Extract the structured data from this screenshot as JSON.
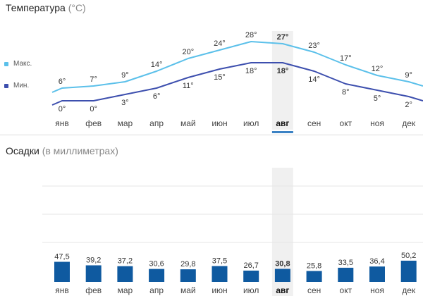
{
  "temperature": {
    "title": "Температура",
    "unit": "(°C)",
    "legend": {
      "max_label": "Макс.",
      "min_label": "Мин."
    },
    "colors": {
      "max": "#5bc0ea",
      "min": "#3d4fae",
      "highlight": "#f0f0f0",
      "selected_marker": "#3b82c4"
    }
  },
  "precipitation": {
    "title": "Осадки",
    "unit": "(в миллиметрах)",
    "colors": {
      "bar": "#0f5aa0",
      "highlight": "#f0f0f0",
      "grid": "#e6e6e6"
    }
  },
  "selected_month": "авг",
  "chart_data": [
    {
      "type": "line",
      "categories": [
        "янв",
        "фев",
        "мар",
        "апр",
        "май",
        "июн",
        "июл",
        "авг",
        "сен",
        "окт",
        "ноя",
        "дек"
      ],
      "series": [
        {
          "name": "Макс.",
          "values": [
            6,
            7,
            9,
            14,
            20,
            24,
            28,
            27,
            23,
            17,
            12,
            9
          ]
        },
        {
          "name": "Мин.",
          "values": [
            0,
            0,
            3,
            6,
            11,
            15,
            18,
            18,
            14,
            8,
            5,
            2
          ]
        }
      ],
      "value_labels": {
        "max": [
          "6°",
          "7°",
          "9°",
          "14°",
          "20°",
          "24°",
          "28°",
          "27°",
          "23°",
          "17°",
          "12°",
          "9°"
        ],
        "min": [
          "0°",
          "0°",
          "3°",
          "6°",
          "11°",
          "15°",
          "18°",
          "18°",
          "14°",
          "8°",
          "5°",
          "2°"
        ]
      },
      "title": "Температура",
      "ylabel": "(°C)",
      "legend": "left"
    },
    {
      "type": "bar",
      "categories": [
        "янв",
        "фев",
        "мар",
        "апр",
        "май",
        "июн",
        "июл",
        "авг",
        "сен",
        "окт",
        "ноя",
        "дек"
      ],
      "values": [
        47.5,
        39.2,
        37.2,
        30.6,
        29.8,
        37.5,
        26.7,
        30.8,
        25.8,
        33.5,
        36.4,
        50.2
      ],
      "value_labels": [
        "47,5",
        "39,2",
        "37,2",
        "30,6",
        "29,8",
        "37,5",
        "26,7",
        "30,8",
        "25,8",
        "33,5",
        "36,4",
        "50,2"
      ],
      "title": "Осадки",
      "ylabel": "(в миллиметрах)",
      "grid": true
    }
  ]
}
